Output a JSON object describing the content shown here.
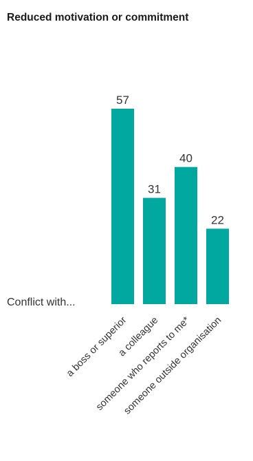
{
  "chart_data": {
    "type": "bar",
    "title": "Reduced motivation or commitment",
    "row_label": "Conflict with...",
    "categories": [
      "a boss or superior",
      "a colleague",
      "someone who reports to me*",
      "someone outside organisation"
    ],
    "values": [
      57,
      31,
      40,
      22
    ],
    "ylim": [
      0,
      57
    ],
    "grid": false,
    "legend": "none",
    "bar_color": "#00A8A0"
  }
}
